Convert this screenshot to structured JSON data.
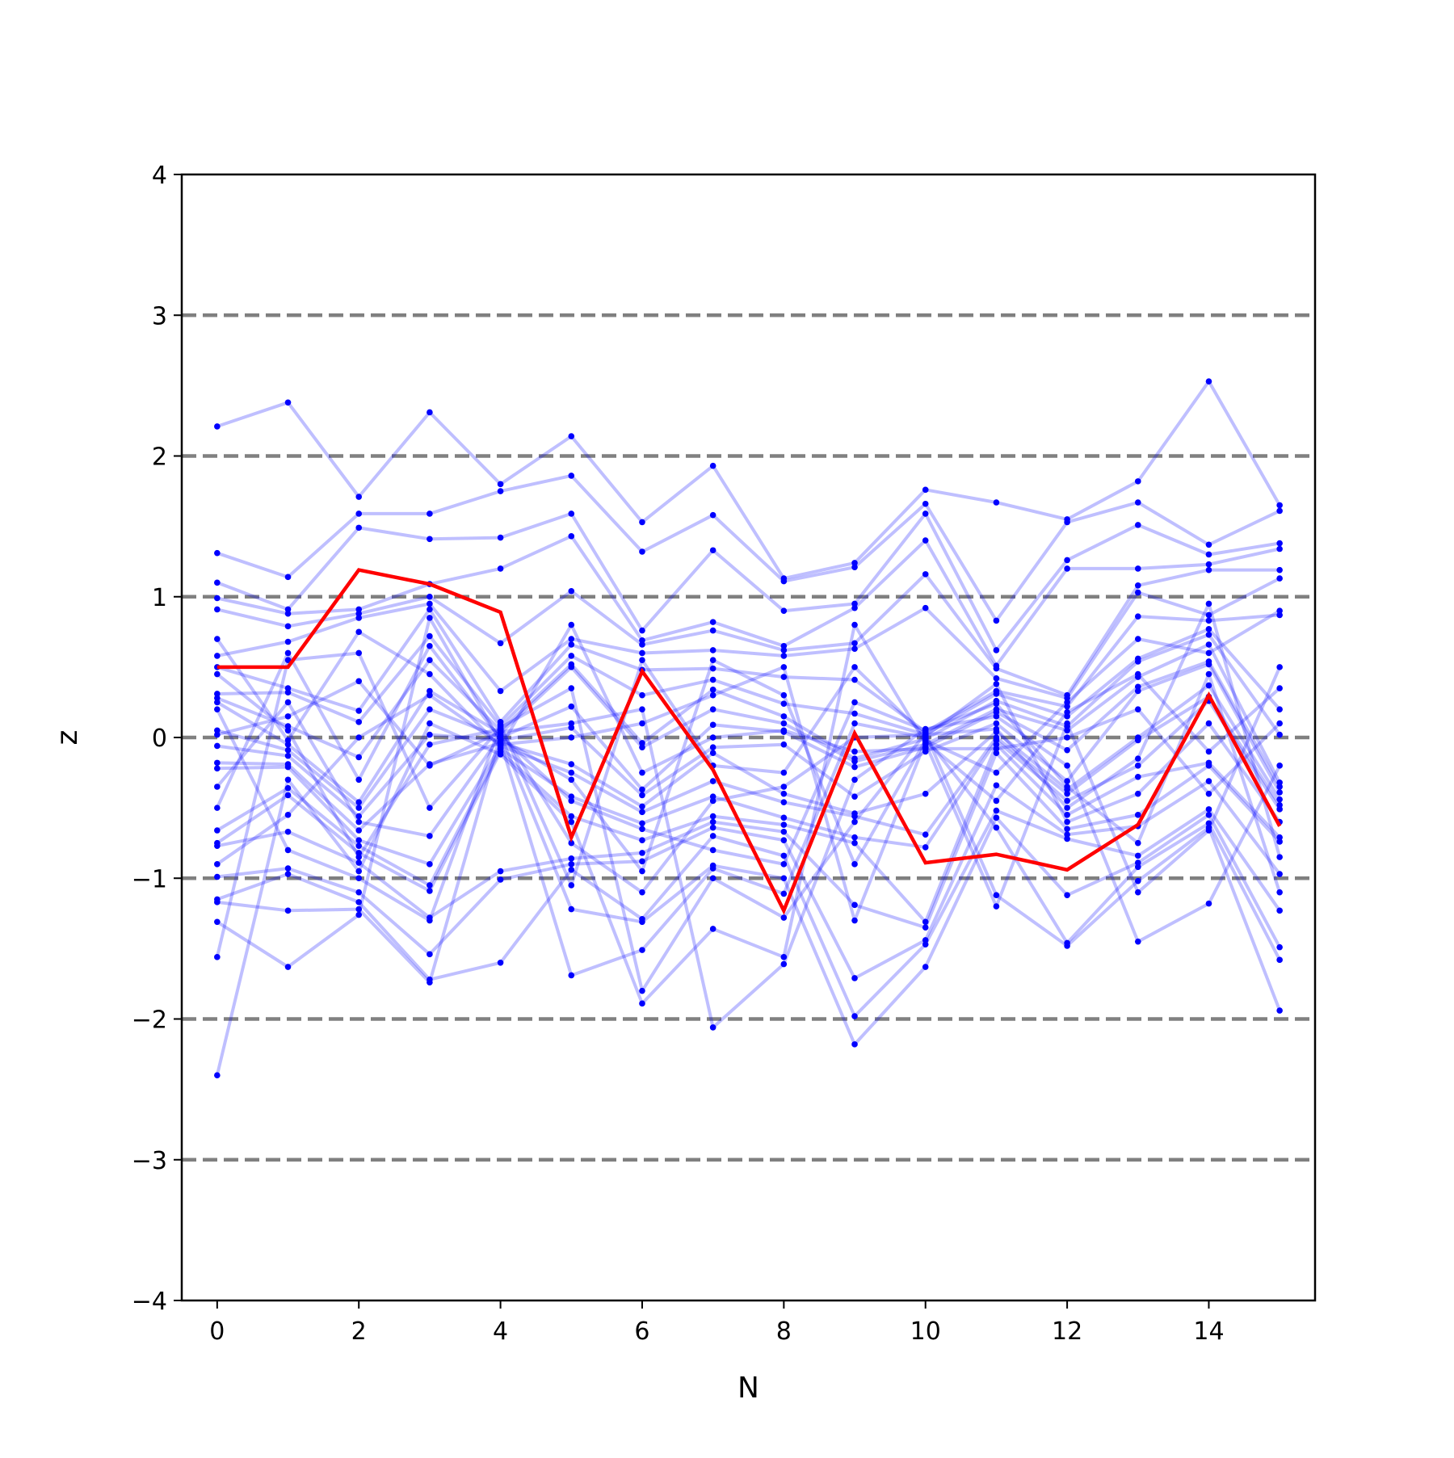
{
  "chart_data": {
    "type": "line",
    "title": "",
    "xlabel": "N",
    "ylabel": "z",
    "xlim": [
      -0.5,
      15.5
    ],
    "ylim": [
      -4,
      4
    ],
    "x_ticks": [
      0,
      2,
      4,
      6,
      8,
      10,
      12,
      14
    ],
    "x_tick_labels": [
      "0",
      "2",
      "4",
      "6",
      "8",
      "10",
      "12",
      "14"
    ],
    "y_ticks": [
      -4,
      -3,
      -2,
      -1,
      0,
      1,
      2,
      3,
      4
    ],
    "y_tick_labels": [
      "−4",
      "−3",
      "−2",
      "−1",
      "0",
      "1",
      "2",
      "3",
      "4"
    ],
    "reference_lines": {
      "y": [
        -3,
        -2,
        -1,
        0,
        1,
        2,
        3
      ],
      "style": "dashed",
      "color": "#808080"
    },
    "grid": false,
    "legend": "none",
    "x": [
      0,
      1,
      2,
      3,
      4,
      5,
      6,
      7,
      8,
      9,
      10,
      11,
      12,
      13,
      14,
      15
    ],
    "background_series": {
      "color": "#0000ff",
      "line_alpha": 0.25,
      "marker": "dot",
      "count": 30,
      "values_by_x": [
        [
          2.21,
          1.31,
          1.1,
          0.99,
          0.91,
          0.58,
          0.5,
          0.31,
          0.28,
          0.25,
          0.05,
          -0.06,
          -0.18,
          -0.22,
          -0.66,
          -0.75,
          -0.77,
          -0.99,
          -1.15,
          -1.17,
          -1.31,
          -1.56,
          -2.4,
          0.02,
          -0.5,
          0.2,
          0.7,
          -0.35,
          -0.9,
          0.45
        ],
        [
          2.38,
          1.14,
          0.91,
          0.88,
          0.79,
          0.68,
          0.35,
          0.32,
          0.08,
          -0.05,
          -0.09,
          -0.13,
          -0.19,
          -0.21,
          -0.36,
          -0.41,
          -0.67,
          -0.93,
          -0.97,
          -1.23,
          -1.63,
          0.55,
          -0.3,
          0.15,
          0.6,
          -0.8,
          -0.02,
          0.25,
          -0.55,
          0.05
        ],
        [
          1.71,
          1.59,
          1.49,
          0.91,
          0.88,
          0.85,
          0.19,
          0.11,
          -0.14,
          -0.46,
          -0.5,
          -0.56,
          -0.66,
          -0.73,
          -0.77,
          -0.82,
          -0.89,
          -1.1,
          -1.17,
          -1.22,
          -1.26,
          0.6,
          -0.95,
          0.4,
          -0.3,
          -1.0,
          0.75,
          -0.6,
          0.0,
          -0.85
        ],
        [
          2.31,
          1.59,
          1.41,
          1.09,
          1.0,
          0.95,
          0.91,
          0.72,
          0.55,
          0.33,
          0.2,
          0.02,
          -0.19,
          -0.9,
          -1.05,
          -1.09,
          -1.28,
          -1.54,
          -1.72,
          -1.74,
          0.85,
          -0.5,
          0.1,
          -0.2,
          0.65,
          -1.3,
          0.45,
          -0.7,
          0.3,
          -0.05
        ],
        [
          1.8,
          1.75,
          1.42,
          1.2,
          0.67,
          0.33,
          0.11,
          0.08,
          0.05,
          0.03,
          0.0,
          -0.02,
          -0.04,
          -0.06,
          -0.08,
          -0.1,
          -0.95,
          -1.01,
          -1.6,
          0.02,
          -0.03,
          0.07,
          -0.12,
          0.04,
          -0.01,
          0.09,
          -0.07,
          0.01,
          -0.05,
          0.06
        ],
        [
          2.14,
          1.86,
          1.59,
          1.43,
          1.04,
          0.7,
          0.66,
          0.58,
          0.52,
          0.5,
          0.22,
          0.07,
          -0.19,
          -0.25,
          -0.42,
          -0.56,
          -0.86,
          -0.9,
          -0.94,
          -1.22,
          -1.69,
          0.35,
          -0.6,
          0.1,
          -0.3,
          -1.05,
          0.8,
          -0.45,
          0.0,
          -0.75
        ],
        [
          1.53,
          1.32,
          0.76,
          0.69,
          0.66,
          0.6,
          0.48,
          0.3,
          -0.04,
          -0.07,
          -0.37,
          -0.41,
          -0.49,
          -0.53,
          -0.61,
          -0.73,
          -0.82,
          -0.88,
          -1.29,
          -1.31,
          -1.51,
          -1.8,
          -1.89,
          0.2,
          -0.95,
          0.55,
          -0.25,
          -0.65,
          0.1,
          -1.1
        ],
        [
          1.93,
          1.58,
          1.33,
          0.82,
          0.76,
          0.62,
          0.49,
          0.41,
          0.34,
          0.2,
          0.09,
          -0.07,
          -0.11,
          -0.31,
          -0.42,
          -0.56,
          -0.6,
          -0.64,
          -0.7,
          -0.91,
          -0.93,
          -1.0,
          -1.36,
          -2.06,
          0.55,
          -0.2,
          0.0,
          -0.8,
          0.3,
          -0.45
        ],
        [
          1.13,
          1.11,
          0.9,
          0.65,
          0.62,
          0.58,
          0.43,
          0.24,
          0.15,
          0.1,
          0.04,
          -0.05,
          -0.4,
          -0.46,
          -0.57,
          -0.62,
          -0.67,
          -0.73,
          -0.84,
          -1.0,
          -1.11,
          -1.28,
          -1.56,
          -1.61,
          0.3,
          -0.25,
          0.05,
          -0.9,
          0.5,
          -0.35
        ],
        [
          1.24,
          1.21,
          0.95,
          0.92,
          0.67,
          0.63,
          0.41,
          0.17,
          -0.15,
          -0.17,
          -0.21,
          -0.42,
          -0.54,
          -0.56,
          -0.71,
          -0.75,
          -1.19,
          -1.71,
          -1.98,
          -2.18,
          0.1,
          -0.6,
          0.8,
          -0.3,
          -0.9,
          0.5,
          -0.1,
          0.25,
          -1.3,
          0.0
        ],
        [
          1.76,
          1.66,
          1.59,
          1.4,
          1.16,
          0.92,
          0.04,
          0.02,
          -0.01,
          -0.05,
          -0.07,
          -0.1,
          -0.4,
          -0.69,
          -0.78,
          -1.31,
          -1.35,
          -1.44,
          -1.47,
          -1.63,
          0.0,
          0.03,
          -0.04,
          0.06,
          -0.02,
          0.01,
          -0.08,
          0.05,
          -0.03,
          0.02
        ],
        [
          1.67,
          0.83,
          0.62,
          0.51,
          0.49,
          0.42,
          0.33,
          0.31,
          0.26,
          0.2,
          0.18,
          0.1,
          0.04,
          0.0,
          -0.02,
          -0.05,
          -0.11,
          -0.34,
          -0.52,
          -0.57,
          -0.64,
          -1.12,
          -1.2,
          0.15,
          -0.25,
          0.38,
          -0.08,
          0.24,
          -0.45,
          0.06
        ],
        [
          1.55,
          1.53,
          1.26,
          1.2,
          0.3,
          0.28,
          0.22,
          0.15,
          0.08,
          0.05,
          -0.09,
          -0.31,
          -0.37,
          -0.4,
          -0.45,
          -0.55,
          -0.65,
          -0.69,
          -0.72,
          -1.12,
          -1.46,
          -1.48,
          0.1,
          -0.2,
          0.25,
          -0.6,
          0.0,
          -0.35,
          0.18,
          -0.5
        ],
        [
          1.82,
          1.67,
          1.51,
          1.2,
          1.08,
          1.03,
          0.86,
          0.56,
          0.54,
          0.43,
          0.36,
          0.33,
          0.0,
          -0.02,
          -0.2,
          -0.28,
          -0.55,
          -0.63,
          -0.84,
          -0.89,
          -0.92,
          -1.02,
          -1.1,
          -1.45,
          0.7,
          -0.4,
          0.2,
          -0.75,
          0.45,
          -0.15
        ],
        [
          2.53,
          1.37,
          1.3,
          1.23,
          1.19,
          0.87,
          0.83,
          0.77,
          0.73,
          0.66,
          0.54,
          0.52,
          0.37,
          0.29,
          0.26,
          -0.18,
          -0.2,
          -0.31,
          -0.51,
          -0.55,
          -0.61,
          -0.64,
          -0.66,
          -1.18,
          0.6,
          0.1,
          -0.4,
          0.45,
          -0.1,
          0.95
        ],
        [
          1.65,
          1.61,
          1.38,
          1.34,
          1.19,
          1.13,
          0.87,
          0.2,
          0.02,
          -0.32,
          -0.35,
          -0.39,
          -0.44,
          -0.48,
          -0.51,
          -0.71,
          -0.74,
          -0.97,
          -1.23,
          -1.49,
          -1.58,
          -1.94,
          0.5,
          -0.2,
          0.9,
          -0.6,
          0.1,
          -1.1,
          0.35,
          -0.85
        ]
      ]
    },
    "highlight_series": {
      "color": "#ff0000",
      "values": [
        0.5,
        0.5,
        1.19,
        1.09,
        0.89,
        -0.71,
        0.47,
        -0.23,
        -1.23,
        0.03,
        -0.89,
        -0.83,
        -0.94,
        -0.62,
        0.3,
        -0.63
      ]
    }
  }
}
